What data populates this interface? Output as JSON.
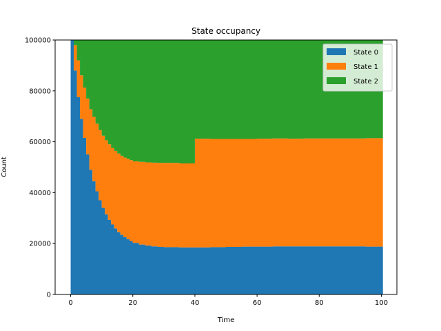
{
  "chart_data": {
    "type": "area",
    "title": "State occupancy",
    "xlabel": "Time",
    "ylabel": "Count",
    "xlim": [
      -5,
      105
    ],
    "ylim": [
      0,
      100000
    ],
    "xticks": [
      0,
      20,
      40,
      60,
      80,
      100
    ],
    "yticks": [
      0,
      20000,
      40000,
      60000,
      80000,
      100000
    ],
    "legend_position": "top-right",
    "grid": false,
    "step": true,
    "stacked": true,
    "x": [
      0,
      1,
      2,
      3,
      4,
      5,
      6,
      7,
      8,
      9,
      10,
      11,
      12,
      13,
      14,
      15,
      16,
      17,
      18,
      19,
      20,
      22,
      24,
      26,
      28,
      30,
      35,
      40,
      45,
      50,
      55,
      60,
      65,
      70,
      75,
      80,
      85,
      90,
      95,
      100
    ],
    "series": [
      {
        "name": "State 0",
        "color": "#1f77b4",
        "values": [
          100000,
          88000,
          77500,
          69000,
          61500,
          55000,
          49000,
          44500,
          40500,
          37000,
          34000,
          31500,
          29300,
          27500,
          25900,
          24500,
          23400,
          22500,
          21700,
          21000,
          20300,
          19600,
          19200,
          18900,
          18700,
          18600,
          18500,
          18500,
          18600,
          18700,
          18800,
          18800,
          18900,
          18900,
          18900,
          18900,
          18900,
          18900,
          18800,
          18800
        ],
        "cumulative_values": []
      },
      {
        "name": "State 1",
        "color": "#ff7f0e",
        "values": [
          0,
          10000,
          14500,
          17100,
          19800,
          22000,
          23800,
          25300,
          26600,
          27600,
          28400,
          29100,
          29700,
          30100,
          30500,
          30900,
          31100,
          31300,
          31600,
          31800,
          32000,
          32500,
          32700,
          32900,
          33000,
          33100,
          33000,
          42700,
          42500,
          42400,
          42300,
          42400,
          42400,
          42300,
          42400,
          42400,
          42400,
          42400,
          42600,
          42600
        ]
      },
      {
        "name": "State 2",
        "color": "#2ca02c",
        "values": [
          0,
          2000,
          8000,
          13900,
          18700,
          23000,
          27200,
          30200,
          32900,
          35400,
          37600,
          39400,
          41000,
          42400,
          43600,
          44600,
          45500,
          46200,
          46700,
          47200,
          47700,
          47900,
          48100,
          48200,
          48300,
          48300,
          48500,
          38800,
          38900,
          38900,
          38900,
          38800,
          38700,
          38800,
          38700,
          38700,
          38700,
          38700,
          38600,
          38600
        ]
      }
    ]
  }
}
